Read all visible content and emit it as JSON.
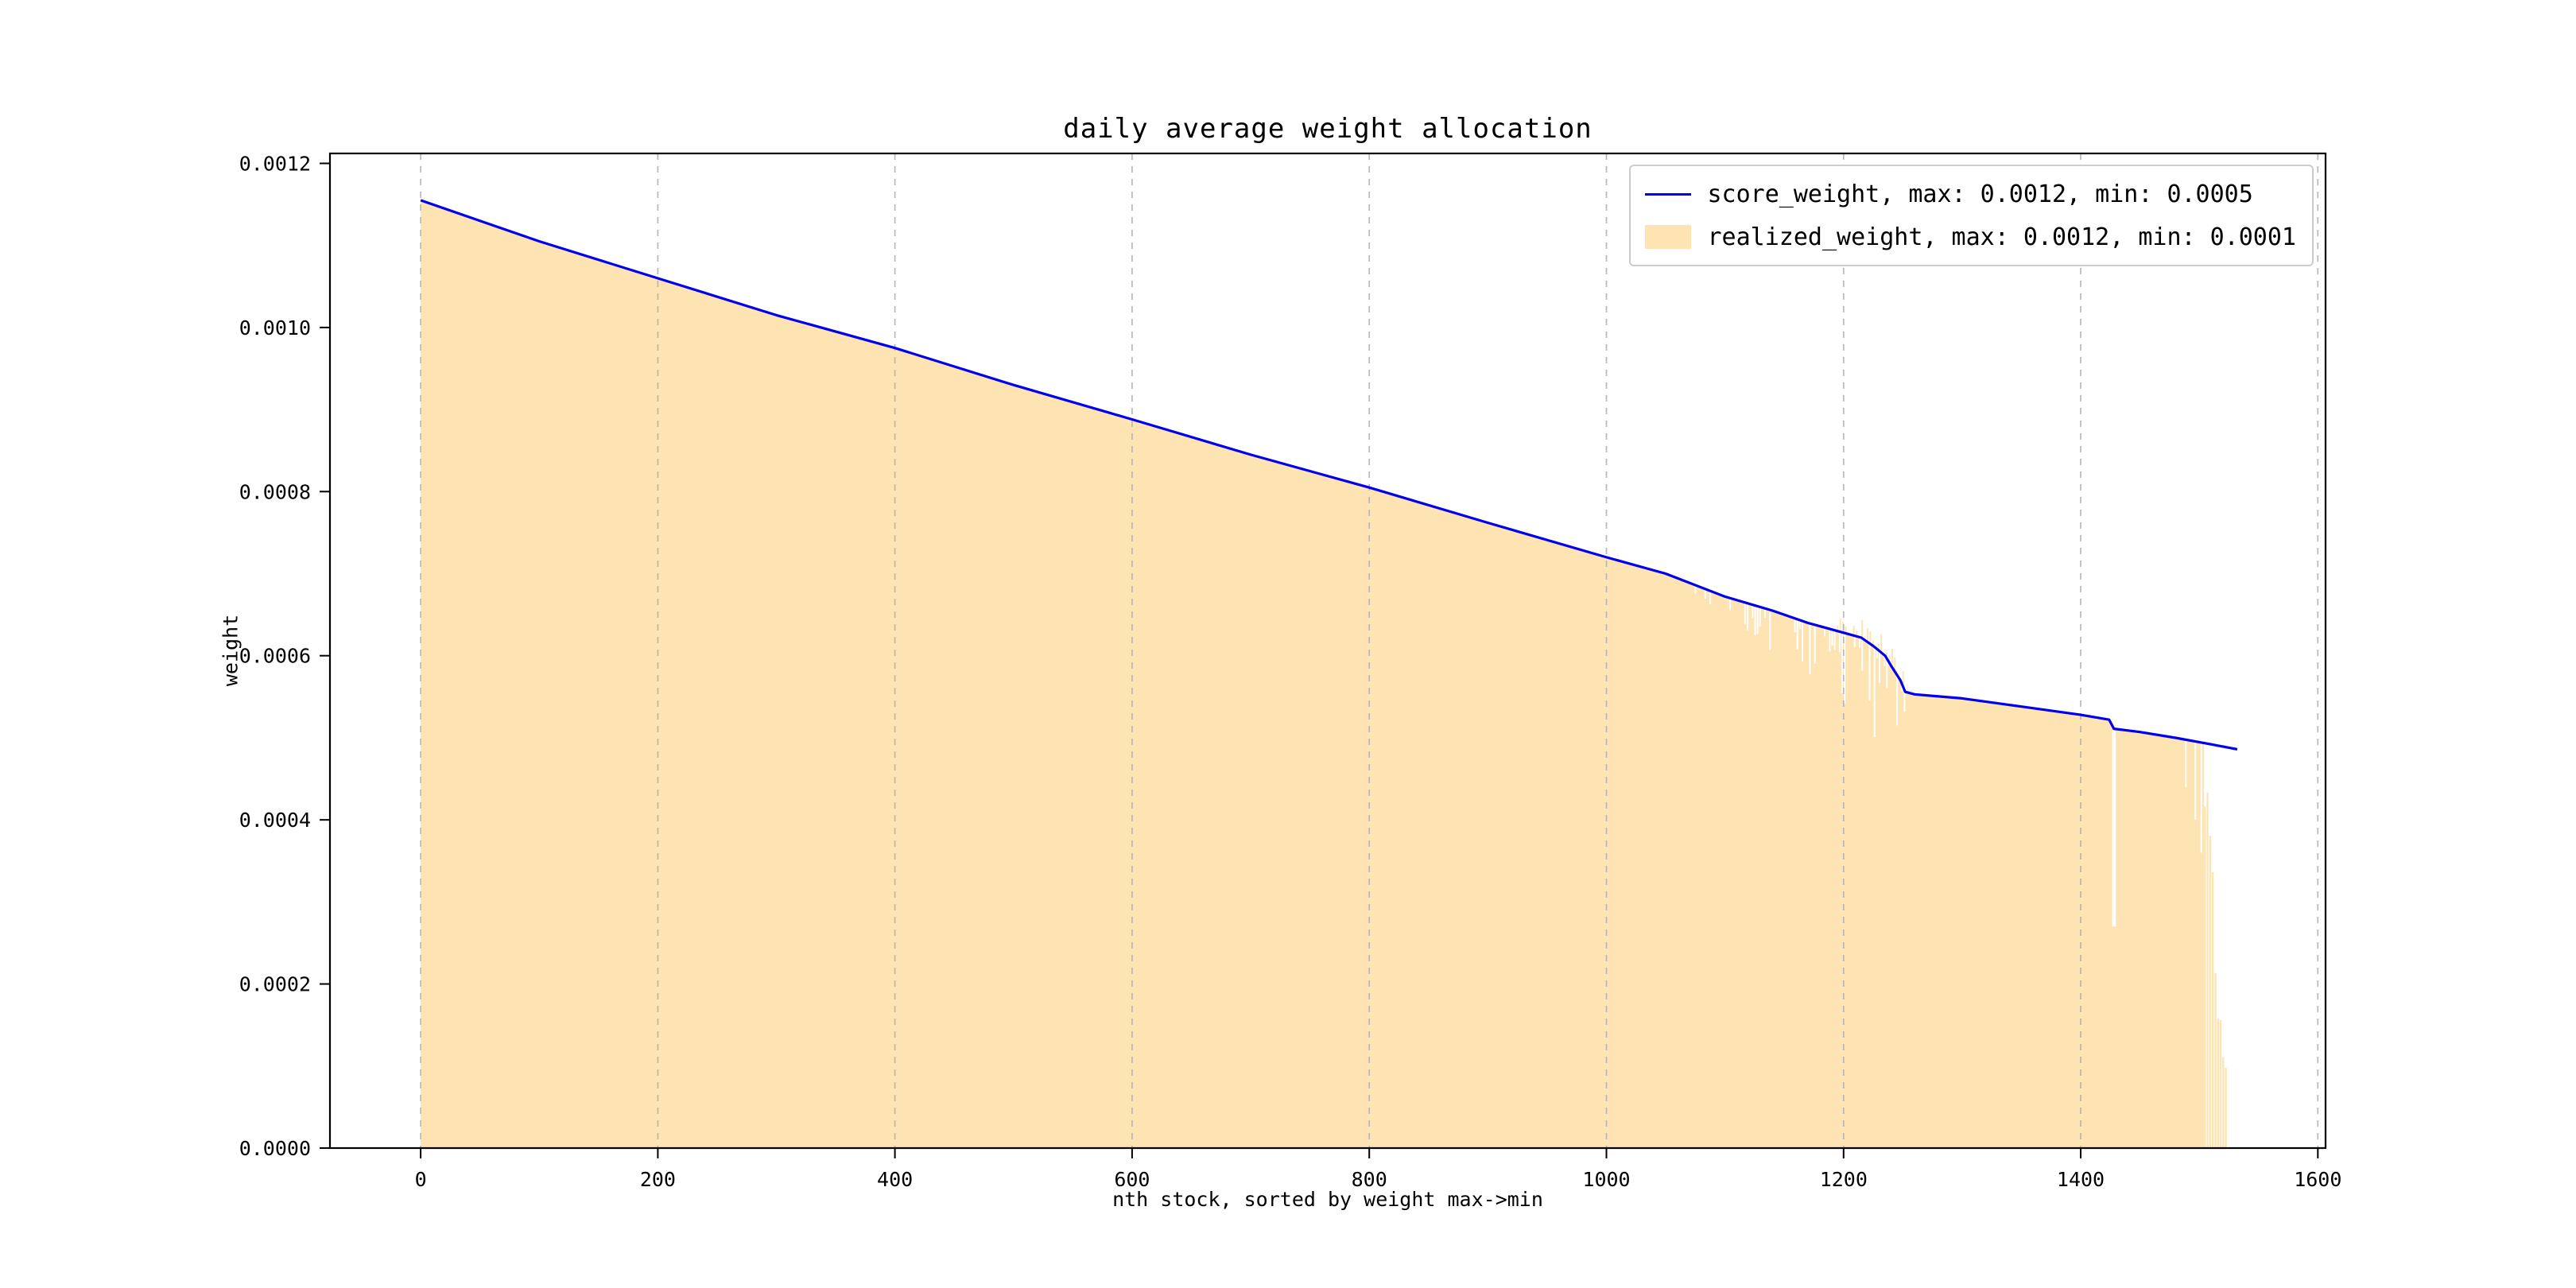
{
  "chart_data": {
    "type": "line+area",
    "title": "daily average weight allocation",
    "xlabel": "nth stock, sorted by weight max->min",
    "ylabel": "weight",
    "xlim": [
      -76.5,
      1606.5
    ],
    "ylim": [
      0,
      0.0012121
    ],
    "x_ticks": [
      0,
      200,
      400,
      600,
      800,
      1000,
      1200,
      1400,
      1600
    ],
    "x_tick_labels": [
      "0",
      "200",
      "400",
      "600",
      "800",
      "1000",
      "1200",
      "1400",
      "1600"
    ],
    "y_ticks": [
      0,
      0.0002,
      0.0004,
      0.0006,
      0.0008,
      0.001,
      0.0012
    ],
    "y_tick_labels": [
      "0.0000",
      "0.0002",
      "0.0004",
      "0.0006",
      "0.0008",
      "0.0010",
      "0.0012"
    ],
    "grid": {
      "axis": "x",
      "style": "dashed",
      "color": "#b5b5b5"
    },
    "legend_position": "upper right",
    "series": [
      {
        "name": "score_weight",
        "type": "line",
        "color": "#0000ee",
        "legend_label": "score_weight, max: 0.0012, min: 0.0005",
        "max": 0.0012,
        "min": 0.0005,
        "points": [
          [
            0,
            0.001155
          ],
          [
            100,
            0.001105
          ],
          [
            200,
            0.00106
          ],
          [
            300,
            0.001015
          ],
          [
            400,
            0.000975
          ],
          [
            500,
            0.00093
          ],
          [
            600,
            0.000888
          ],
          [
            700,
            0.000845
          ],
          [
            800,
            0.000805
          ],
          [
            900,
            0.000762
          ],
          [
            1000,
            0.00072
          ],
          [
            1050,
            0.0007
          ],
          [
            1100,
            0.000672
          ],
          [
            1140,
            0.000655
          ],
          [
            1170,
            0.00064
          ],
          [
            1200,
            0.000628
          ],
          [
            1215,
            0.000622
          ],
          [
            1225,
            0.000612
          ],
          [
            1235,
            0.0006
          ],
          [
            1240,
            0.000588
          ],
          [
            1248,
            0.00057
          ],
          [
            1252,
            0.000556
          ],
          [
            1260,
            0.000553
          ],
          [
            1300,
            0.000548
          ],
          [
            1350,
            0.000538
          ],
          [
            1400,
            0.000528
          ],
          [
            1424,
            0.000522
          ],
          [
            1428,
            0.000511
          ],
          [
            1450,
            0.000507
          ],
          [
            1480,
            0.0005
          ],
          [
            1510,
            0.000492
          ],
          [
            1532,
            0.000486
          ]
        ]
      },
      {
        "name": "realized_weight",
        "type": "area",
        "color": "#ffe4b3",
        "legend_label": "realized_weight, max: 0.0012, min: 0.0001",
        "max": 0.0012,
        "min": 0.0001,
        "follows": "score_weight",
        "noise_region": [
          1068,
          1254
        ],
        "gap_x": 1428,
        "gap_bottom": 0.00027,
        "extra_gaps": [
          [
            1488,
            0.00044
          ],
          [
            1496,
            0.0004
          ],
          [
            1501,
            0.00036
          ]
        ],
        "fill_end": 1504,
        "tail_end": 1522,
        "tail_min": 0.0001
      }
    ]
  }
}
